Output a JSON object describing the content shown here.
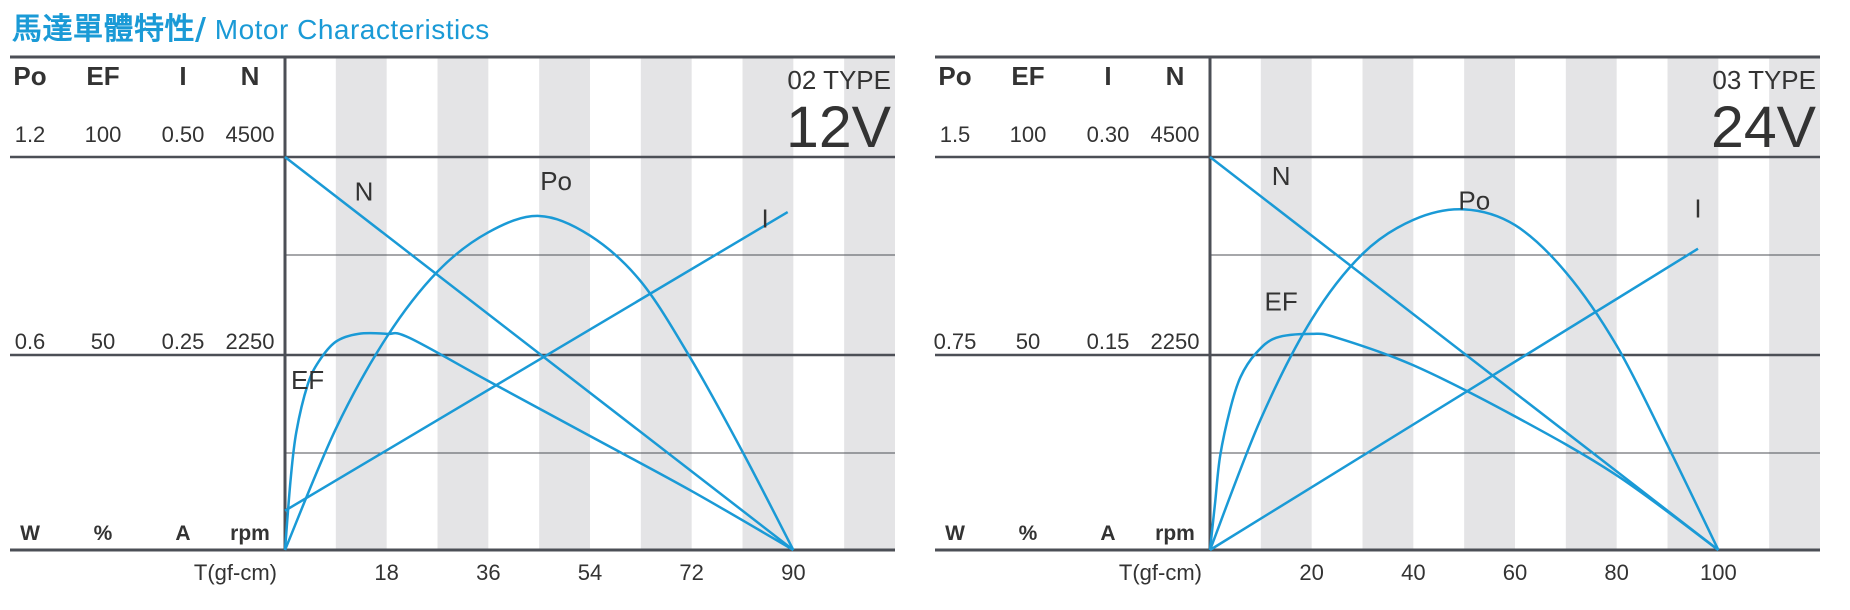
{
  "title": {
    "zh": "馬達單體特性/",
    "en": " Motor Characteristics"
  },
  "colors": {
    "accent": "#1a9ad6",
    "band": "#e4e4e6",
    "axis": "#4c4f56",
    "text": "#333333"
  },
  "chart_data": [
    {
      "type": "line",
      "type_label": "02 TYPE",
      "voltage": "12V",
      "xlabel": "T(gf-cm)",
      "x_ticks": [
        "18",
        "36",
        "54",
        "72",
        "90"
      ],
      "xlim": [
        0,
        108
      ],
      "headers": [
        "Po",
        "EF",
        "I",
        "N"
      ],
      "top_values": [
        "1.2",
        "100",
        "0.50",
        "4500"
      ],
      "mid_values": [
        "0.6",
        "50",
        "0.25",
        "2250"
      ],
      "units": [
        "W",
        "%",
        "A",
        "rpm"
      ],
      "ranges": {
        "Po": [
          0,
          1.2
        ],
        "EF": [
          0,
          100
        ],
        "I": [
          0,
          0.5
        ],
        "N": [
          0,
          4500
        ]
      },
      "series": [
        {
          "name": "N",
          "label_at": [
            14,
            4000
          ],
          "points": [
            [
              0,
              4500
            ],
            [
              90,
              0
            ]
          ]
        },
        {
          "name": "Po",
          "label_at": [
            48,
            1.1
          ],
          "points": [
            [
              0,
              0
            ],
            [
              9,
              0.37
            ],
            [
              18,
              0.65
            ],
            [
              27,
              0.85
            ],
            [
              36,
              0.97
            ],
            [
              45,
              1.02
            ],
            [
              54,
              0.96
            ],
            [
              63,
              0.82
            ],
            [
              72,
              0.58
            ],
            [
              81,
              0.3
            ],
            [
              90,
              0
            ]
          ]
        },
        {
          "name": "I",
          "label_at": [
            85,
            0.41
          ],
          "points": [
            [
              0,
              0.05
            ],
            [
              89,
              0.43
            ]
          ]
        },
        {
          "name": "EF",
          "label_at": [
            4,
            41
          ],
          "points": [
            [
              0,
              0
            ],
            [
              1,
              18
            ],
            [
              2,
              30
            ],
            [
              4,
              42
            ],
            [
              6,
              48
            ],
            [
              9,
              53
            ],
            [
              13,
              55
            ],
            [
              18,
              55
            ],
            [
              22,
              54
            ],
            [
              36,
              43
            ],
            [
              54,
              29
            ],
            [
              72,
              15
            ],
            [
              90,
              0
            ]
          ]
        }
      ]
    },
    {
      "type": "line",
      "type_label": "03 TYPE",
      "voltage": "24V",
      "xlabel": "T(gf-cm)",
      "x_ticks": [
        "20",
        "40",
        "60",
        "80",
        "100"
      ],
      "xlim": [
        0,
        120
      ],
      "headers": [
        "Po",
        "EF",
        "I",
        "N"
      ],
      "top_values": [
        "1.5",
        "100",
        "0.30",
        "4500"
      ],
      "mid_values": [
        "0.75",
        "50",
        "0.15",
        "2250"
      ],
      "units": [
        "W",
        "%",
        "A",
        "rpm"
      ],
      "ranges": {
        "Po": [
          0,
          1.5
        ],
        "EF": [
          0,
          100
        ],
        "I": [
          0,
          0.3
        ],
        "N": [
          0,
          4500
        ]
      },
      "series": [
        {
          "name": "N",
          "label_at": [
            14,
            4180
          ],
          "points": [
            [
              0,
              4500
            ],
            [
              100,
              0
            ]
          ]
        },
        {
          "name": "Po",
          "label_at": [
            52,
            1.3
          ],
          "points": [
            [
              0,
              0
            ],
            [
              10,
              0.5
            ],
            [
              20,
              0.88
            ],
            [
              30,
              1.13
            ],
            [
              40,
              1.26
            ],
            [
              50,
              1.3
            ],
            [
              60,
              1.24
            ],
            [
              70,
              1.06
            ],
            [
              80,
              0.78
            ],
            [
              90,
              0.4
            ],
            [
              100,
              0
            ]
          ]
        },
        {
          "name": "I",
          "label_at": [
            96,
            0.254
          ],
          "points": [
            [
              0,
              0
            ],
            [
              96,
              0.23
            ]
          ]
        },
        {
          "name": "EF",
          "label_at": [
            14,
            61
          ],
          "points": [
            [
              0,
              0
            ],
            [
              1,
              12
            ],
            [
              2,
              24
            ],
            [
              4,
              36
            ],
            [
              6,
              44
            ],
            [
              9,
              50
            ],
            [
              13,
              54
            ],
            [
              20,
              55
            ],
            [
              25,
              54
            ],
            [
              40,
              47
            ],
            [
              60,
              34
            ],
            [
              80,
              19
            ],
            [
              100,
              0
            ]
          ]
        }
      ]
    }
  ]
}
